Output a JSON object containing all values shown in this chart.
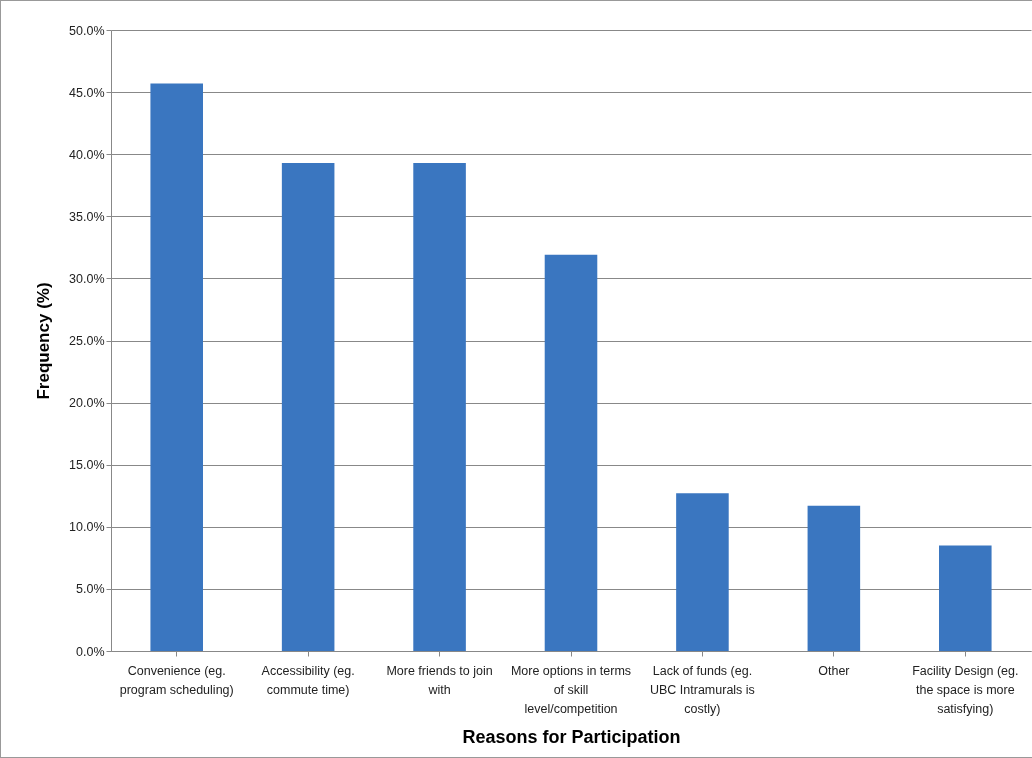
{
  "chart_data": {
    "type": "bar",
    "xlabel": "Reasons for Participation",
    "ylabel": "Frequency (%)",
    "categories": [
      "Convenience (eg. program scheduling)",
      "Accessibility (eg. commute time)",
      "More friends to join with",
      "More options in terms of skill level/competition",
      "Lack of funds (eg. UBC Intramurals is costly)",
      "Other",
      "Facility Design (eg. the space is more satisfying)"
    ],
    "values": [
      45.7,
      39.3,
      39.3,
      31.9,
      12.7,
      11.7,
      8.5
    ],
    "color": "#3a76c0",
    "ylim": [
      0,
      50
    ],
    "yticks": [
      {
        "value": 0,
        "label": "0.0%"
      },
      {
        "value": 5,
        "label": "5.0%"
      },
      {
        "value": 10,
        "label": "10.0%"
      },
      {
        "value": 15,
        "label": "15.0%"
      },
      {
        "value": 20,
        "label": "20.0%"
      },
      {
        "value": 25,
        "label": "25.0%"
      },
      {
        "value": 30,
        "label": "30.0%"
      },
      {
        "value": 35,
        "label": "35.0%"
      },
      {
        "value": 40,
        "label": "40.0%"
      },
      {
        "value": 45,
        "label": "45.0%"
      },
      {
        "value": 50,
        "label": "50.0%"
      }
    ],
    "grid": "y"
  }
}
